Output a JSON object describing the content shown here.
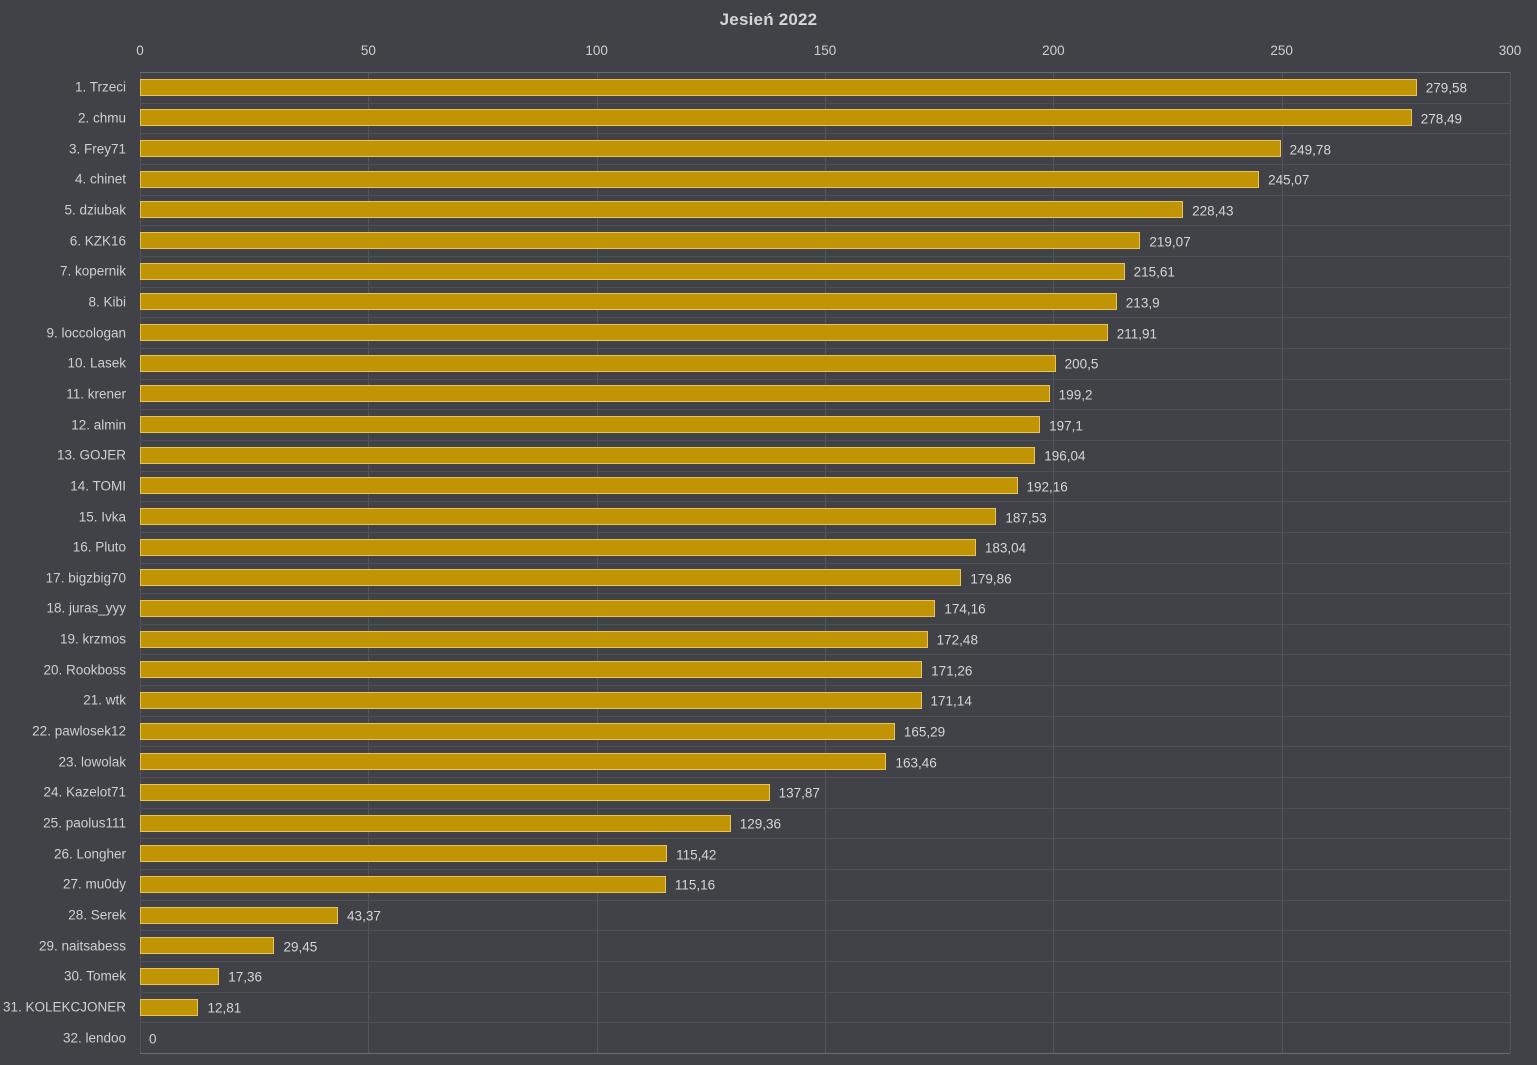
{
  "title": "Jesień 2022",
  "colors": {
    "background": "#414247",
    "bar_fill": "#C09402",
    "bar_border": "#E9C45C",
    "text": "#D5D5D5",
    "gridline": "#54555C",
    "row_separator": "#4F5056",
    "axis_line": "#6B6C71"
  },
  "chart_data": {
    "type": "bar",
    "orientation": "horizontal",
    "title": "Jesień 2022",
    "xlabel": "",
    "ylabel": "",
    "xlim": [
      0,
      300
    ],
    "x_ticks": [
      0,
      50,
      100,
      150,
      200,
      250,
      300
    ],
    "grid": "on",
    "legend": "none",
    "categories": [
      "1. Trzeci",
      "2. chmu",
      "3. Frey71",
      "4. chinet",
      "5. dziubak",
      "6. KZK16",
      "7. kopernik",
      "8. Kibi",
      "9. loccologan",
      "10. Lasek",
      "11. krener",
      "12. almin",
      "13. GOJER",
      "14. TOMI",
      "15. Ivka",
      "16. Pluto",
      "17. bigzbig70",
      "18. juras_yyy",
      "19. krzmos",
      "20. Rookboss",
      "21. wtk",
      "22. pawlosek12",
      "23. lowolak",
      "24. Kazelot71",
      "25. paolus111",
      "26. Longher",
      "27. mu0dy",
      "28. Serek",
      "29. naitsabess",
      "30. Tomek",
      "31. KOLEKCJONER",
      "32. lendoo"
    ],
    "values": [
      279.58,
      278.49,
      249.78,
      245.07,
      228.43,
      219.07,
      215.61,
      213.9,
      211.91,
      200.5,
      199.2,
      197.1,
      196.04,
      192.16,
      187.53,
      183.04,
      179.86,
      174.16,
      172.48,
      171.26,
      171.14,
      165.29,
      163.46,
      137.87,
      129.36,
      115.42,
      115.16,
      43.37,
      29.45,
      17.36,
      12.81,
      0
    ],
    "value_labels": [
      "279,58",
      "278,49",
      "249,78",
      "245,07",
      "228,43",
      "219,07",
      "215,61",
      "213,9",
      "211,91",
      "200,5",
      "199,2",
      "197,1",
      "196,04",
      "192,16",
      "187,53",
      "183,04",
      "179,86",
      "174,16",
      "172,48",
      "171,26",
      "171,14",
      "165,29",
      "163,46",
      "137,87",
      "129,36",
      "115,42",
      "115,16",
      "43,37",
      "29,45",
      "17,36",
      "12,81",
      "0"
    ]
  }
}
